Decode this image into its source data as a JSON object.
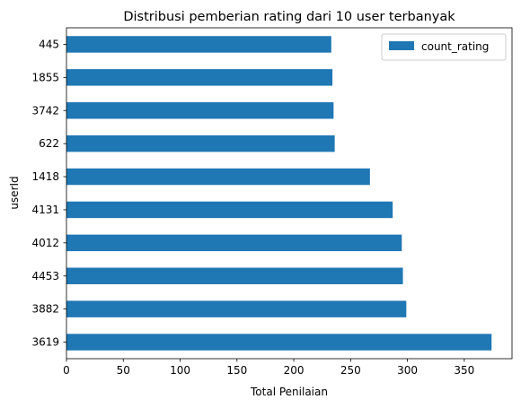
{
  "chart_data": {
    "type": "bar",
    "orientation": "horizontal",
    "title": "Distribusi pemberian rating dari 10 user terbanyak",
    "xlabel": "Total Penilaian",
    "ylabel": "userId",
    "xlim": [
      0,
      392
    ],
    "xticks": [
      0,
      50,
      100,
      150,
      200,
      250,
      300,
      350
    ],
    "categories": [
      "3619",
      "3882",
      "4453",
      "4012",
      "4131",
      "1418",
      "622",
      "3742",
      "1855",
      "445"
    ],
    "series": [
      {
        "name": "count_rating",
        "values": [
          374,
          299,
          296,
          295,
          287,
          267,
          236,
          235,
          234,
          233
        ],
        "color": "#1f77b4"
      }
    ],
    "grid": false,
    "legend_position": "top-right"
  }
}
